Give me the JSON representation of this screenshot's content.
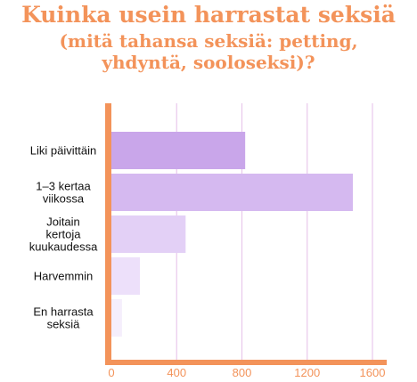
{
  "title": {
    "line1": "Kuinka usein harrastat seksiä",
    "line2": "(mitä tahansa seksiä: petting,",
    "line3": "yhdyntä, sooloseksi)?"
  },
  "chart_data": {
    "type": "bar",
    "orientation": "horizontal",
    "categories": [
      [
        "Liki päivittäin"
      ],
      [
        "1–3 kertaa",
        "viikossa"
      ],
      [
        "Joitain",
        "kertoja",
        "kuukaudessa"
      ],
      [
        "Harvemmin"
      ],
      [
        "En harrasta",
        "seksiä"
      ]
    ],
    "values": [
      820,
      1480,
      455,
      175,
      65
    ],
    "colors": [
      "#c9a6ea",
      "#d5b9f0",
      "#e3d0f6",
      "#ede0fa",
      "#f5eefc"
    ],
    "xlim": [
      0,
      1600
    ],
    "xticks": [
      "0",
      "400",
      "800",
      "1200",
      "1600"
    ],
    "xtick_values": [
      0,
      400,
      800,
      1200,
      1600
    ],
    "grid": true,
    "axis_color": "#f3935a",
    "grid_color": "#e8c8ec"
  }
}
